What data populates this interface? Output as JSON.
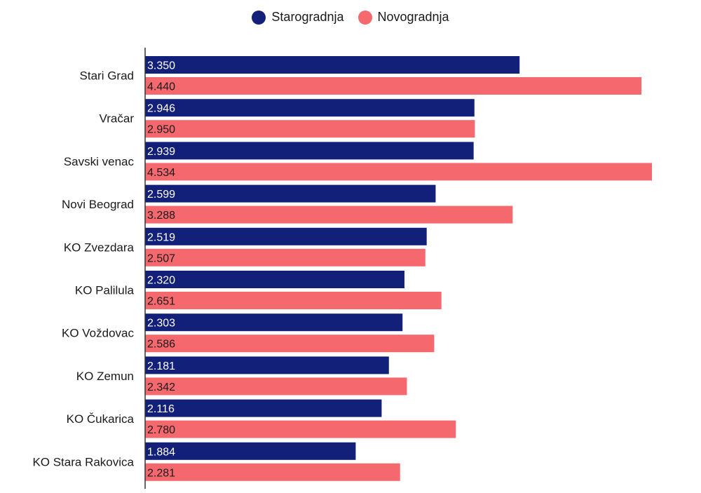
{
  "legend": {
    "items": [
      {
        "label": "Starogradnja",
        "color": "#12207a"
      },
      {
        "label": "Novogradnja",
        "color": "#f5686e"
      }
    ],
    "placement": "top-center"
  },
  "chart_data": {
    "type": "bar",
    "orientation": "horizontal",
    "categories": [
      "Stari Grad",
      "Vračar",
      "Savski venac",
      "Novi Beograd",
      "KO Zvezdara",
      "KO Palilula",
      "KO Voždovac",
      "KO Zemun",
      "KO Čukarica",
      "KO Stara Rakovica"
    ],
    "series": [
      {
        "name": "Starogradnja",
        "color": "#12207a",
        "label_color": "#ffffff",
        "values": [
          3350,
          2946,
          2939,
          2599,
          2519,
          2320,
          2303,
          2181,
          2116,
          1884
        ],
        "labels": [
          "3.350",
          "2.946",
          "2.939",
          "2.599",
          "2.519",
          "2.320",
          "2.303",
          "2.181",
          "2.116",
          "1.884"
        ]
      },
      {
        "name": "Novogradnja",
        "color": "#f5686e",
        "label_color": "#1a1a1a",
        "values": [
          4440,
          2950,
          4534,
          3288,
          2507,
          2651,
          2586,
          2342,
          2780,
          2281
        ],
        "labels": [
          "4.440",
          "2.950",
          "4.534",
          "3.288",
          "2.507",
          "2.651",
          "2.586",
          "2.342",
          "2.780",
          "2.281"
        ]
      }
    ],
    "xlim": [
      0,
      4534
    ],
    "grid": false,
    "title": "",
    "xlabel": "",
    "ylabel": ""
  }
}
